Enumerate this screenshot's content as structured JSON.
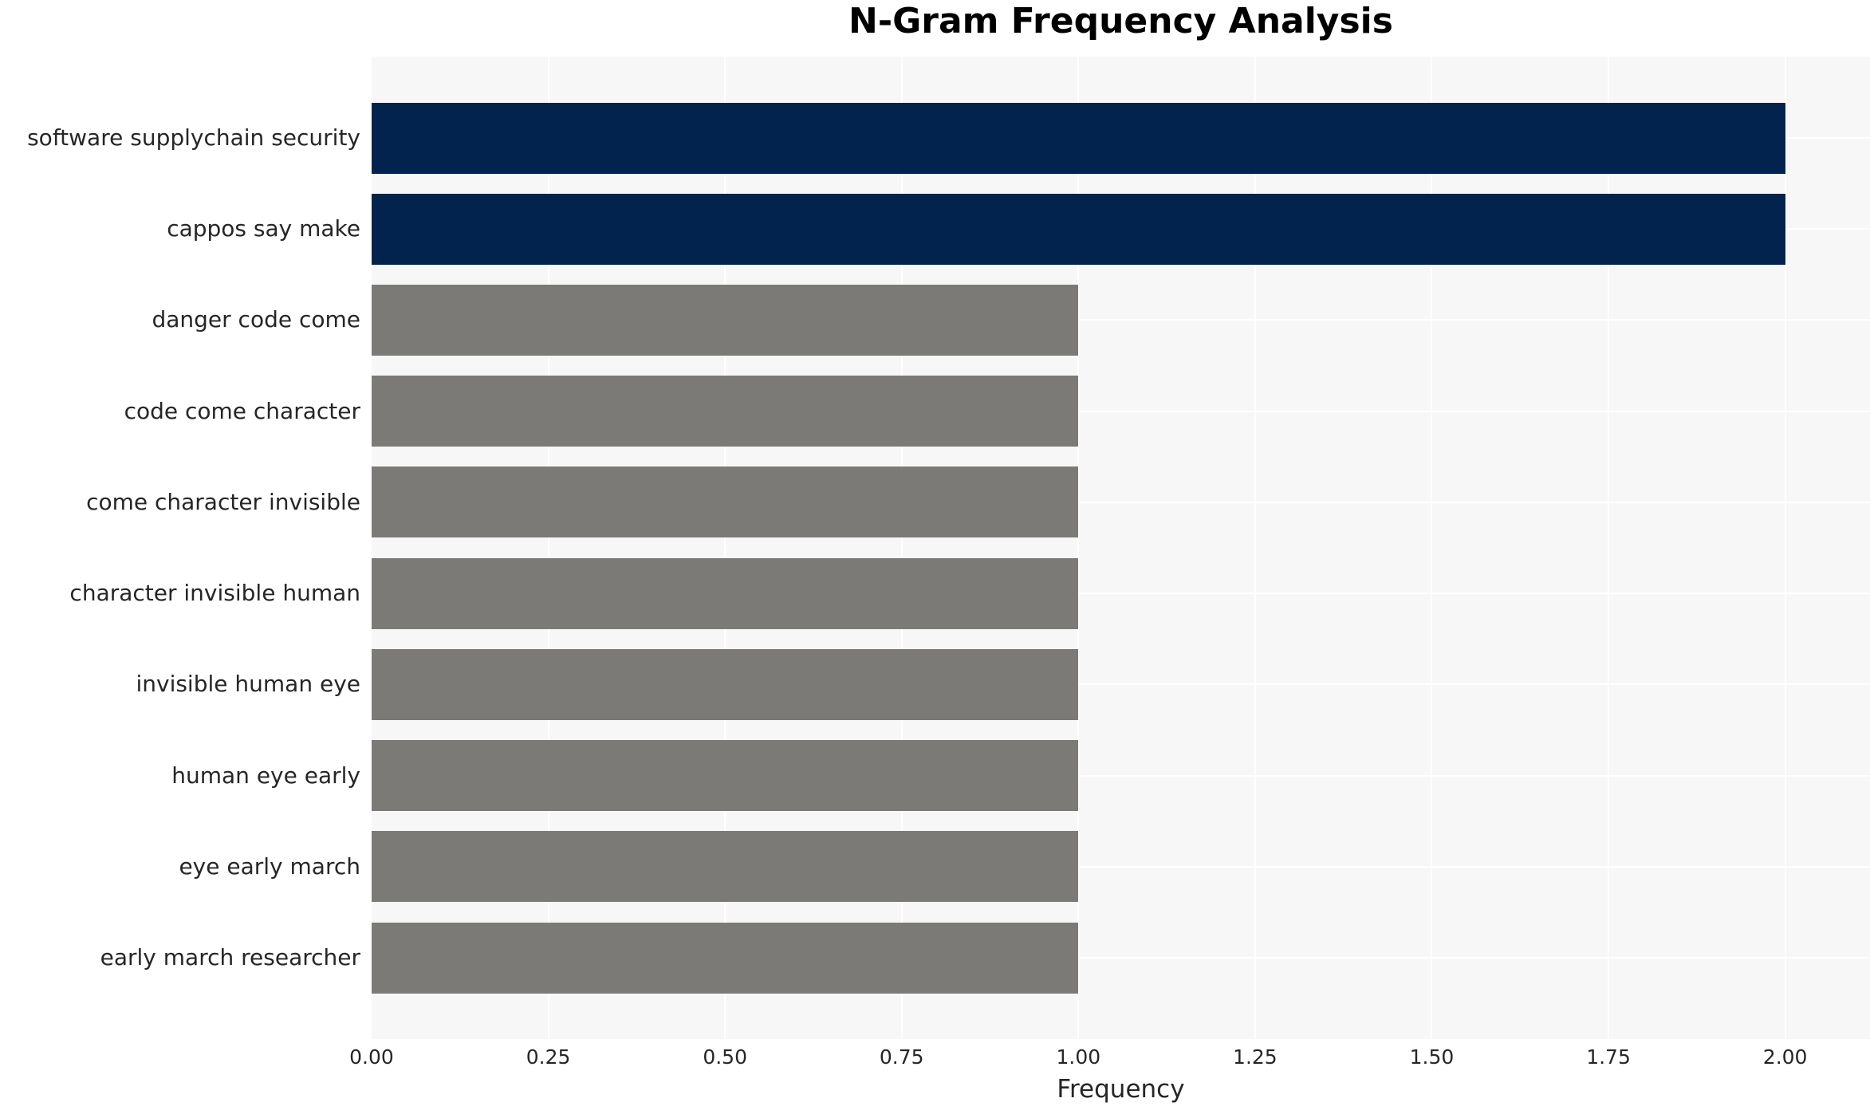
{
  "page": {
    "background": "#FFFFFF"
  },
  "chart_data": {
    "type": "bar",
    "orientation": "horizontal",
    "title": "N-Gram Frequency Analysis",
    "xlabel": "Frequency",
    "ylabel": "",
    "categories": [
      "software supplychain security",
      "cappos say make",
      "danger code come",
      "code come character",
      "come character invisible",
      "character invisible human",
      "invisible human eye",
      "human eye early",
      "eye early march",
      "early march researcher"
    ],
    "values": [
      2,
      2,
      1,
      1,
      1,
      1,
      1,
      1,
      1,
      1
    ],
    "bar_colors": [
      "#02234D",
      "#02234D",
      "#7B7A77",
      "#7B7A77",
      "#7B7A77",
      "#7B7A77",
      "#7B7A77",
      "#7B7A77",
      "#7B7A77",
      "#7B7A77"
    ],
    "highlight_color": "#02234D",
    "default_color": "#7B7A77",
    "xlim": [
      0,
      2.12
    ],
    "xticks": [
      0,
      0.25,
      0.5,
      0.75,
      1.0,
      1.25,
      1.5,
      1.75,
      2.0
    ],
    "xtick_labels": [
      "0.00",
      "0.25",
      "0.50",
      "0.75",
      "1.00",
      "1.25",
      "1.50",
      "1.75",
      "2.00"
    ],
    "grid": true,
    "grid_color": "#FFFFFF",
    "plot_bg": "#F8F7F7",
    "text_color": "#262626",
    "title_color": "#000000",
    "legend": false
  }
}
